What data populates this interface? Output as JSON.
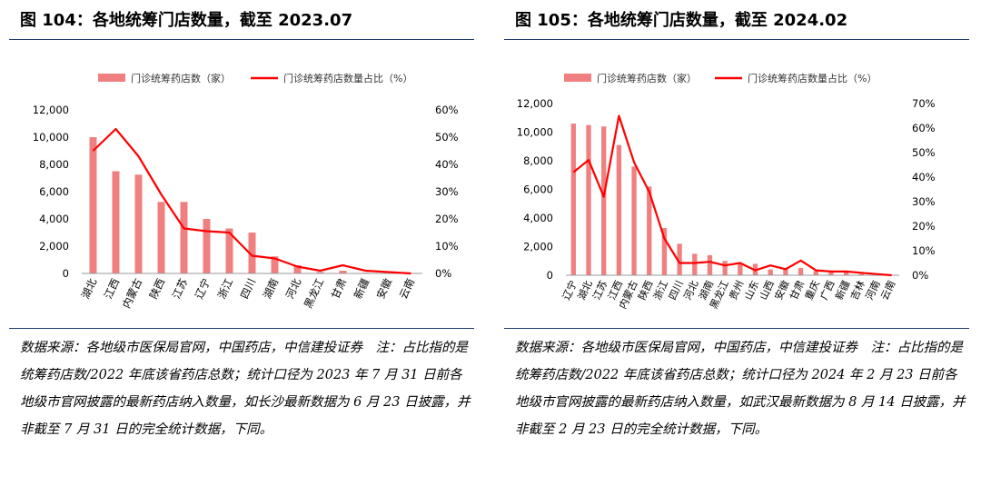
{
  "figures": [
    {
      "title": "图 104：各地统筹门店数量，截至 2023.07",
      "note": "数据来源：各地级市医保局官网，中国药店，中信建投证券　注：占比指的是统筹药店数/2022 年底该省药店总数；统计口径为 2023 年 7 月 31 日前各地级市官网披露的最新药店纳入数量，如长沙最新数据为 6 月 23 日披露，并非截至 7 月 31 日的完全统计数据，下同。"
    },
    {
      "title": "图 105：各地统筹门店数量，截至 2024.02",
      "note": "数据来源：各地级市医保局官网，中国药店，中信建投证券　注：占比指的是统筹药店数/2022 年底该省药店总数；统计口径为 2024 年 2 月 23 日前各地级市官网披露的最新药店纳入数量，如武汉最新数据为 8 月 14 日披露，并非截至 2 月 23 日的完全统计数据，下同。"
    }
  ],
  "chart_data": [
    {
      "type": "bar",
      "categories": [
        "湖北",
        "江西",
        "内蒙古",
        "陕西",
        "江苏",
        "辽宁",
        "浙江",
        "四川",
        "湖南",
        "河北",
        "黑龙江",
        "甘肃",
        "新疆",
        "安徽",
        "云南"
      ],
      "series": [
        {
          "name": "门诊统筹药店数（家）",
          "type": "bar",
          "axis": "left",
          "color": "#f08080",
          "values": [
            10000,
            7500,
            7250,
            5250,
            5250,
            4000,
            3300,
            3000,
            1250,
            600,
            100,
            200,
            50,
            20,
            10
          ]
        },
        {
          "name": "门诊统筹药店数量占比（%）",
          "type": "line",
          "axis": "right",
          "color": "#ff0000",
          "values": [
            45,
            53,
            43,
            29,
            16.5,
            15.5,
            15,
            6.5,
            5.5,
            2.5,
            1,
            3,
            1,
            0.5,
            0
          ]
        }
      ],
      "left_axis": {
        "ylim": [
          0,
          12000
        ],
        "ticks": [
          "0",
          "2,000",
          "4,000",
          "6,000",
          "8,000",
          "10,000",
          "12,000"
        ]
      },
      "right_axis": {
        "ylim": [
          0,
          60
        ],
        "ticks": [
          "0%",
          "10%",
          "20%",
          "30%",
          "40%",
          "50%",
          "60%"
        ]
      },
      "legend": "top"
    },
    {
      "type": "bar",
      "categories": [
        "辽宁",
        "湖北",
        "江苏",
        "江西",
        "内蒙古",
        "陕西",
        "浙江",
        "四川",
        "河北",
        "湖南",
        "黑龙江",
        "贵州",
        "山东",
        "山西",
        "安徽",
        "甘肃",
        "重庆",
        "广西",
        "新疆",
        "吉林",
        "河南",
        "云南"
      ],
      "series": [
        {
          "name": "门诊统筹药店数（家）",
          "type": "bar",
          "axis": "left",
          "color": "#f08080",
          "values": [
            10600,
            10500,
            10400,
            9100,
            7600,
            6200,
            3300,
            2200,
            1500,
            1400,
            1000,
            800,
            800,
            400,
            500,
            500,
            300,
            200,
            300,
            100,
            50,
            20
          ]
        },
        {
          "name": "门诊统筹药店数量占比（%）",
          "type": "line",
          "axis": "right",
          "color": "#ff0000",
          "values": [
            42,
            47,
            32,
            65,
            46,
            34,
            15,
            5,
            5,
            5.5,
            4,
            5,
            2,
            4,
            2.5,
            6,
            2,
            1.5,
            1.5,
            1,
            0.5,
            0
          ]
        }
      ],
      "left_axis": {
        "ylim": [
          0,
          12000
        ],
        "ticks": [
          "0",
          "2,000",
          "4,000",
          "6,000",
          "8,000",
          "10,000",
          "12,000"
        ]
      },
      "right_axis": {
        "ylim": [
          0,
          70
        ],
        "ticks": [
          "0%",
          "10%",
          "20%",
          "30%",
          "40%",
          "50%",
          "60%",
          "70%"
        ]
      },
      "legend": "top"
    }
  ]
}
